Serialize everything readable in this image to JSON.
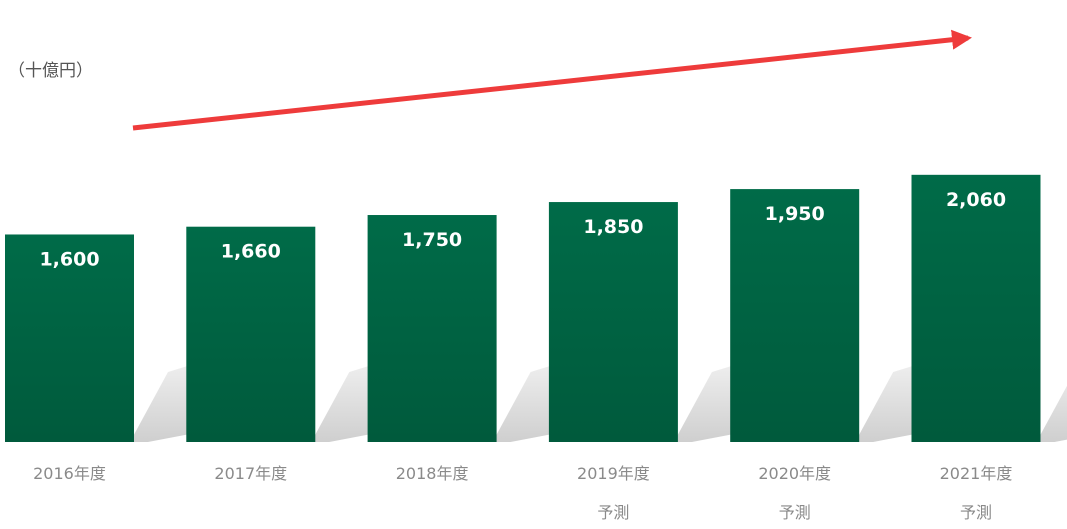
{
  "chart_data": {
    "type": "bar",
    "unit_label": "（十億円）",
    "categories": [
      [
        "2016年度"
      ],
      [
        "2017年度"
      ],
      [
        "2018年度"
      ],
      [
        "2019年度",
        "予測"
      ],
      [
        "2020年度",
        "予測"
      ],
      [
        "2021年度",
        "予測"
      ]
    ],
    "values": [
      1600,
      1660,
      1750,
      1850,
      1950,
      2060
    ],
    "value_labels": [
      "1,600",
      "1,660",
      "1,750",
      "1,850",
      "1,950",
      "2,060"
    ],
    "title": "",
    "xlabel": "",
    "ylabel": "",
    "grid": false,
    "legend": "none",
    "trend_arrow": true,
    "colors": {
      "bar_top": "#006b48",
      "bar_bottom": "#005a3c",
      "bar_shadow": "#cfcfcf",
      "arrow": "#ee3b3b",
      "value_text": "#ffffff",
      "category_text": "#8a8a8a"
    }
  }
}
